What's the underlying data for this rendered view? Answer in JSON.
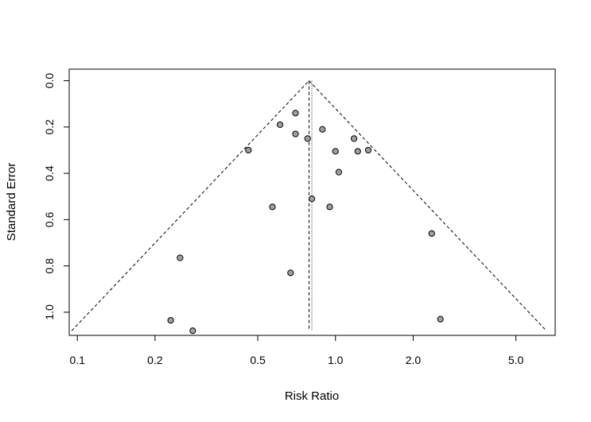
{
  "chart_data": {
    "type": "scatter",
    "subtype": "funnel",
    "title": "",
    "xlabel": "Risk Ratio",
    "ylabel": "Standard Error",
    "x_scale": "log",
    "xlim": [
      0.093,
      7.1
    ],
    "ylim": [
      1.1,
      -0.05
    ],
    "x_ticks": [
      {
        "value": 0.1,
        "label": "0.1"
      },
      {
        "value": 0.2,
        "label": "0.2"
      },
      {
        "value": 0.5,
        "label": "0.5"
      },
      {
        "value": 1.0,
        "label": "1.0"
      },
      {
        "value": 2.0,
        "label": "2.0"
      },
      {
        "value": 5.0,
        "label": "5.0"
      }
    ],
    "y_ticks": [
      {
        "value": 0.0,
        "label": "0.0"
      },
      {
        "value": 0.2,
        "label": "0.2"
      },
      {
        "value": 0.4,
        "label": "0.4"
      },
      {
        "value": 0.6,
        "label": "0.6"
      },
      {
        "value": 0.8,
        "label": "0.8"
      },
      {
        "value": 1.0,
        "label": "1.0"
      }
    ],
    "pooled_estimate": 0.79,
    "reference_line": 0.81,
    "funnel_max_se": 1.08,
    "point_color": "#a0a0a0",
    "points": [
      {
        "rr": 0.7,
        "se": 0.14
      },
      {
        "rr": 0.61,
        "se": 0.19
      },
      {
        "rr": 0.7,
        "se": 0.23
      },
      {
        "rr": 0.78,
        "se": 0.25
      },
      {
        "rr": 0.89,
        "se": 0.21
      },
      {
        "rr": 1.18,
        "se": 0.25
      },
      {
        "rr": 0.46,
        "se": 0.3
      },
      {
        "rr": 1.0,
        "se": 0.305
      },
      {
        "rr": 1.22,
        "se": 0.305
      },
      {
        "rr": 1.34,
        "se": 0.3
      },
      {
        "rr": 1.03,
        "se": 0.395
      },
      {
        "rr": 0.81,
        "se": 0.51
      },
      {
        "rr": 0.57,
        "se": 0.545
      },
      {
        "rr": 0.95,
        "se": 0.545
      },
      {
        "rr": 2.36,
        "se": 0.66
      },
      {
        "rr": 0.25,
        "se": 0.765
      },
      {
        "rr": 0.67,
        "se": 0.83
      },
      {
        "rr": 0.23,
        "se": 1.035
      },
      {
        "rr": 0.28,
        "se": 1.08
      },
      {
        "rr": 2.55,
        "se": 1.03
      }
    ]
  }
}
